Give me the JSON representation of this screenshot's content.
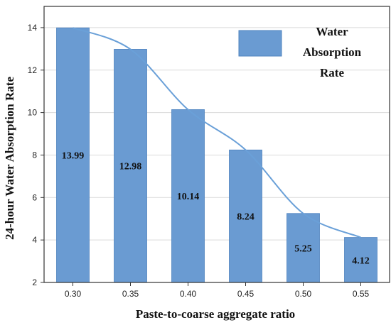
{
  "chart_data": {
    "type": "bar",
    "categories": [
      "0.30",
      "0.35",
      "0.40",
      "0.45",
      "0.50",
      "0.55"
    ],
    "series": [
      {
        "name": "Water Absorption Rate",
        "values": [
          13.99,
          12.98,
          10.14,
          8.24,
          5.25,
          4.12
        ],
        "data_labels": [
          "13.99",
          "12.98",
          "10.14",
          "8.24",
          "5.25",
          "4.12"
        ]
      }
    ],
    "trend_line": {
      "type": "smooth-line",
      "follows_series": "Water Absorption Rate"
    },
    "legend_lines": [
      "Water",
      "Absorption",
      "Rate"
    ],
    "xlabel": "Paste-to-coarse aggregate ratio",
    "ylabel": "24-hour Water Absorption Rate",
    "ylim": [
      2,
      15
    ],
    "yticks": [
      2,
      4,
      6,
      8,
      10,
      12,
      14
    ],
    "grid": true,
    "legend_placement": "top-right",
    "colors": {
      "bar": "#6a9bd2",
      "bar_edge": "#4f83bf",
      "line": "#6aa0d8",
      "grid": "#dadada",
      "frame": "#333333"
    }
  }
}
